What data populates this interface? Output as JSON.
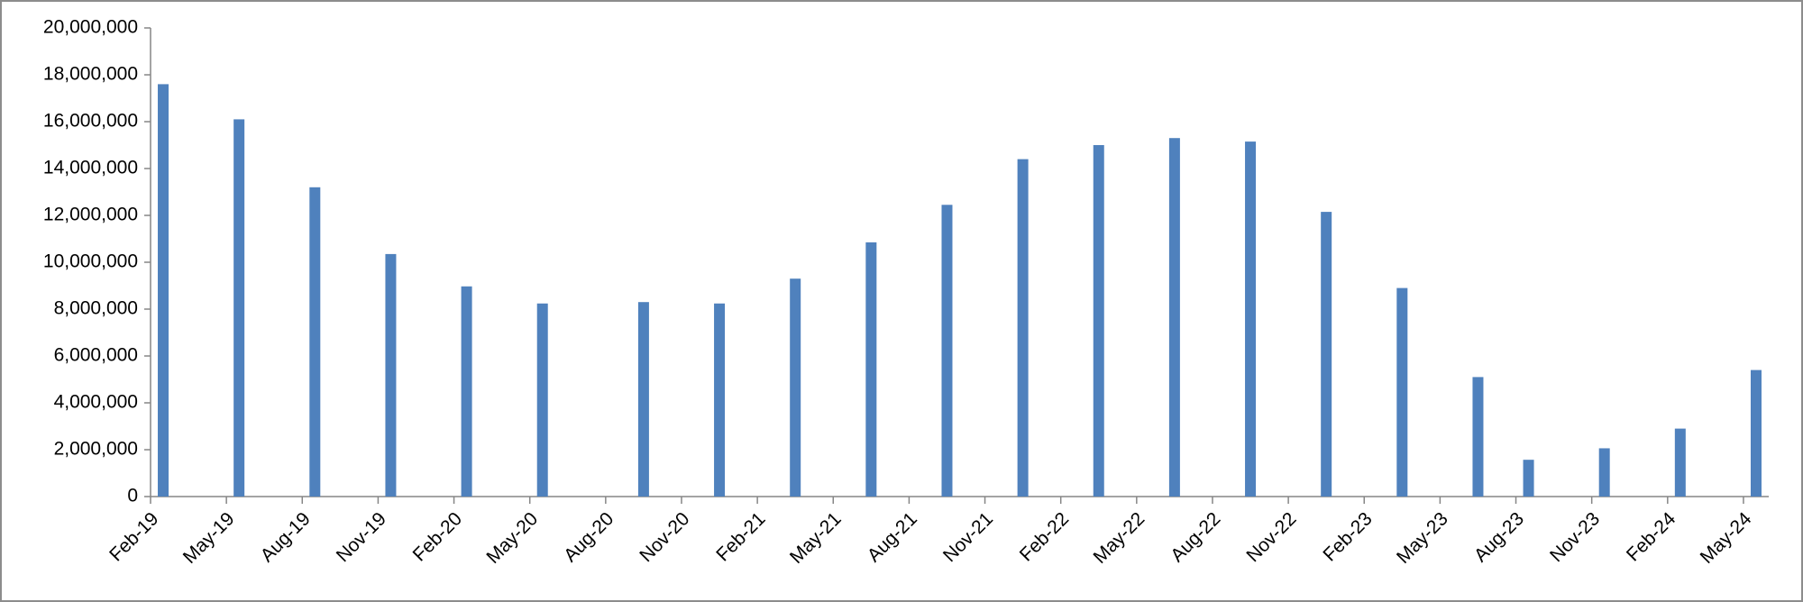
{
  "chart_data": {
    "type": "bar",
    "color": "#4f81bd",
    "categories": [
      "Feb-19",
      null,
      null,
      "May-19",
      null,
      null,
      "Aug-19",
      null,
      null,
      "Nov-19",
      null,
      null,
      "Feb-20",
      null,
      null,
      "May-20",
      null,
      null,
      "Aug-20",
      null,
      null,
      "Nov-20",
      null,
      null,
      "Feb-21",
      null,
      null,
      "May-21",
      null,
      null,
      "Aug-21",
      null,
      null,
      "Nov-21",
      null,
      null,
      "Feb-22",
      null,
      null,
      "May-22",
      null,
      null,
      "Aug-22",
      null,
      null,
      "Nov-22",
      null,
      null,
      "Feb-23",
      null,
      null,
      "May-23",
      null,
      null,
      "Aug-23",
      null,
      null,
      "Nov-23",
      null,
      null,
      "Feb-24",
      null,
      null,
      "May-24"
    ],
    "values": [
      17600000,
      null,
      null,
      16100000,
      null,
      null,
      13200000,
      null,
      null,
      10350000,
      null,
      null,
      8970000,
      null,
      null,
      8240000,
      null,
      null,
      null,
      8300000,
      null,
      null,
      8240000,
      null,
      null,
      9300000,
      null,
      null,
      10850000,
      null,
      null,
      12450000,
      null,
      null,
      14400000,
      null,
      null,
      15000000,
      null,
      null,
      15300000,
      null,
      null,
      15150000,
      null,
      null,
      12150000,
      null,
      null,
      8900000,
      null,
      null,
      5100000,
      null,
      1570000,
      null,
      null,
      2060000,
      null,
      null,
      2900000,
      null,
      null,
      5400000
    ],
    "ylim": [
      0,
      20000000
    ],
    "yticks": [
      0,
      {
        "value": 2000000,
        "label": "2,000,000"
      },
      {
        "value": 4000000,
        "label": "4,000,000"
      },
      {
        "value": 6000000,
        "label": "6,000,000"
      },
      {
        "value": 8000000,
        "label": "8,000,000"
      },
      {
        "value": 10000000,
        "label": "10,000,000"
      },
      {
        "value": 12000000,
        "label": "12,000,000"
      },
      {
        "value": 14000000,
        "label": "14,000,000"
      },
      {
        "value": 16000000,
        "label": "16,000,000"
      },
      {
        "value": 18000000,
        "label": "18,000,000"
      },
      {
        "value": 20000000,
        "label": "20,000,000"
      }
    ],
    "grid": false
  }
}
